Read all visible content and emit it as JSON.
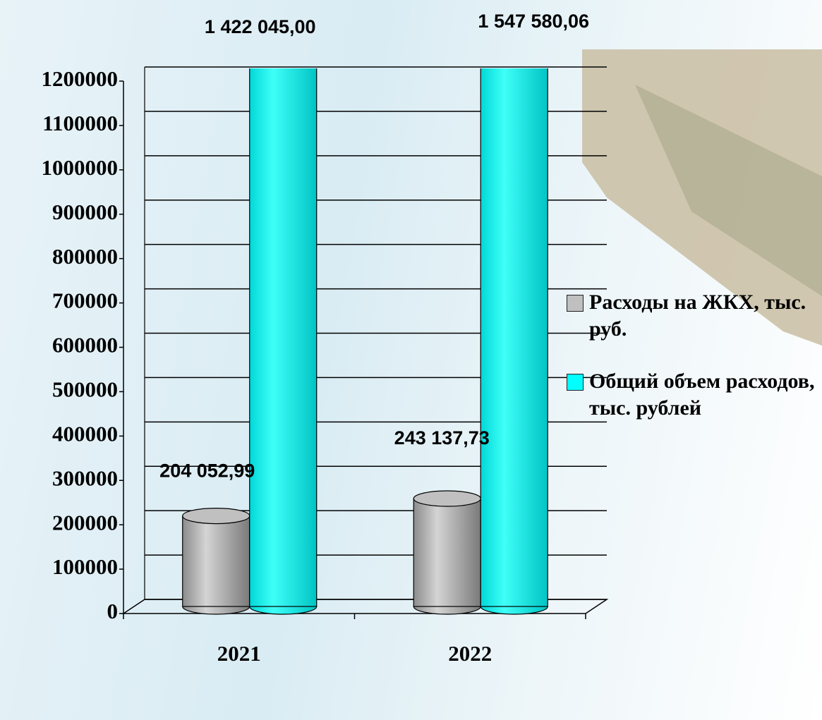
{
  "chart_data": {
    "type": "bar3d",
    "categories": [
      "2021",
      "2022"
    ],
    "series": [
      {
        "name": "Расходы на ЖКХ, тыс. руб.",
        "color": "#c0c0c0",
        "values": [
          204052.99,
          243137.73
        ],
        "value_labels": [
          "204 052,99",
          "243 137,73"
        ]
      },
      {
        "name": "Общий объем расходов, тыс. рублей",
        "color": "#00ffff",
        "values": [
          1422045.0,
          1547580.06
        ],
        "value_labels": [
          "1 422 045,00",
          "1 547 580,06"
        ]
      }
    ],
    "ylim": [
      0,
      1200000
    ],
    "yticks": [
      0,
      100000,
      200000,
      300000,
      400000,
      500000,
      600000,
      700000,
      800000,
      900000,
      1000000,
      1100000,
      1200000
    ],
    "grid": true,
    "legend": "right"
  }
}
